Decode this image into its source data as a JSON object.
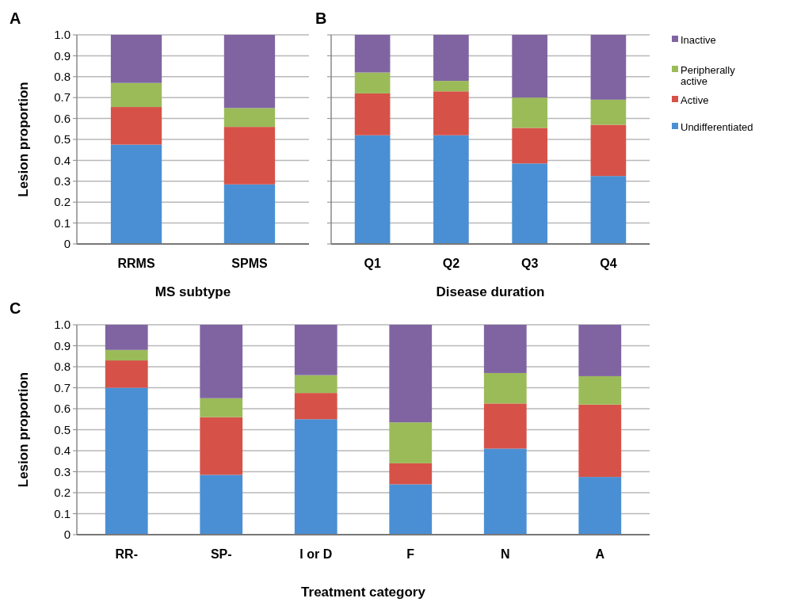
{
  "chart_data": [
    {
      "type": "bar",
      "stacked": true,
      "title": "A",
      "ylabel": "Lesion proportion",
      "xlabel": "MS subtype",
      "categories": [
        "RRMS",
        "SPMS"
      ],
      "ylim": [
        0,
        1
      ],
      "yticks": [
        0,
        {
          "value": 0.1,
          "label": "0.1"
        },
        {
          "value": 0.2,
          "label": "0.2"
        },
        {
          "value": 0.3,
          "label": "0.3"
        },
        {
          "value": 0.4,
          "label": "0.4"
        },
        {
          "value": 0.5,
          "label": "0.5"
        },
        {
          "value": 0.6,
          "label": "0.6"
        },
        {
          "value": 0.7,
          "label": "0.7"
        },
        {
          "value": 0.8,
          "label": "0.8"
        },
        {
          "value": 0.9,
          "label": "0.9"
        },
        {
          "value": 1,
          "label": "1.0"
        }
      ],
      "grid": "y",
      "series": [
        {
          "color": "#4a8fd4",
          "values": [
            0.475,
            0.285
          ]
        },
        {
          "color": "#d65248",
          "values": [
            0.18,
            0.275
          ]
        },
        {
          "color": "#9bbb59",
          "values": [
            0.115,
            0.09
          ]
        },
        {
          "color": "#8064a2",
          "values": [
            0.23,
            0.35
          ]
        }
      ]
    },
    {
      "type": "bar",
      "stacked": true,
      "title": "B",
      "xlabel": "Disease duration",
      "categories": [
        "Q1",
        "Q2",
        "Q3",
        "Q4"
      ],
      "ylim": [
        0,
        1
      ],
      "yticks": [
        {
          "value": 0,
          "label": null
        },
        {
          "value": 0.1,
          "label": null
        },
        {
          "value": 0.2,
          "label": null
        },
        {
          "value": 0.3,
          "label": null
        },
        {
          "value": 0.4,
          "label": null
        },
        {
          "value": 0.5,
          "label": null
        },
        {
          "value": 0.6,
          "label": null
        },
        {
          "value": 0.7,
          "label": null
        },
        {
          "value": 0.8,
          "label": null
        },
        {
          "value": 0.9,
          "label": null
        },
        {
          "value": 1,
          "label": null
        }
      ],
      "grid": "y",
      "tick_labels": "x",
      "legend": "right",
      "series": [
        {
          "name": "Undifferentiated",
          "color": "#4a8fd4",
          "values": [
            0.52,
            0.52,
            0.385,
            0.325
          ]
        },
        {
          "name": "Active",
          "color": "#d65248",
          "values": [
            0.2,
            0.21,
            0.17,
            0.245
          ]
        },
        {
          "name": "Peripherally active",
          "color": "#9bbb59",
          "values": [
            0.1,
            0.05,
            0.145,
            0.12
          ]
        },
        {
          "name": "Inactive",
          "color": "#8064a2",
          "values": [
            0.18,
            0.22,
            0.3,
            0.31
          ]
        }
      ]
    },
    {
      "type": "bar",
      "stacked": true,
      "title": "C",
      "ylabel": "Lesion proportion",
      "xlabel": "Treatment category",
      "categories": [
        "RR-",
        "SP-",
        "I or D",
        "F",
        "N",
        "A"
      ],
      "ylim": [
        0,
        1
      ],
      "yticks": [
        0,
        {
          "value": 0.1,
          "label": "0.1"
        },
        {
          "value": 0.2,
          "label": "0.2"
        },
        {
          "value": 0.3,
          "label": "0.3"
        },
        {
          "value": 0.4,
          "label": "0.4"
        },
        {
          "value": 0.5,
          "label": "0.5"
        },
        {
          "value": 0.6,
          "label": "0.6"
        },
        {
          "value": 0.7,
          "label": "0.7"
        },
        {
          "value": 0.8,
          "label": "0.8"
        },
        {
          "value": 0.9,
          "label": "0.9"
        },
        {
          "value": 1,
          "label": "1.0"
        }
      ],
      "grid": "y",
      "series": [
        {
          "color": "#4a8fd4",
          "values": [
            0.7,
            0.285,
            0.55,
            0.24,
            0.41,
            0.275
          ]
        },
        {
          "color": "#d65248",
          "values": [
            0.13,
            0.275,
            0.125,
            0.1,
            0.215,
            0.345
          ]
        },
        {
          "color": "#9bbb59",
          "values": [
            0.05,
            0.09,
            0.085,
            0.195,
            0.145,
            0.135
          ]
        },
        {
          "color": "#8064a2",
          "values": [
            0.12,
            0.35,
            0.24,
            0.465,
            0.23,
            0.245
          ]
        }
      ]
    }
  ]
}
